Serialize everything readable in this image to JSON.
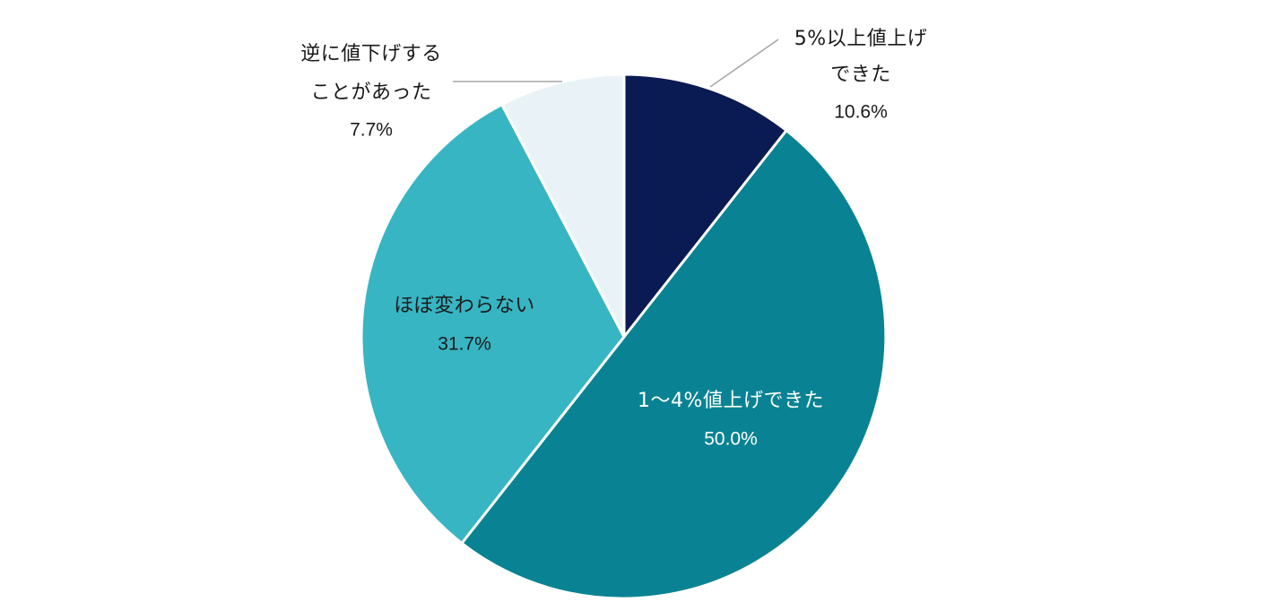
{
  "chart_data": {
    "type": "pie",
    "start_angle_deg": 0,
    "direction": "clockwise",
    "slices": [
      {
        "label_lines": [
          "5%以上値上げ",
          "できた"
        ],
        "value": 10.6,
        "value_text": "10.6%",
        "color": "#0a1a52",
        "text_color": "#1a1a1a",
        "label_placement": "outside"
      },
      {
        "label_lines": [
          "1〜4%値上げできた"
        ],
        "value": 50.0,
        "value_text": "50.0%",
        "color": "#098393",
        "text_color": "#ffffff",
        "label_placement": "inside"
      },
      {
        "label_lines": [
          "ほぼ変わらない"
        ],
        "value": 31.7,
        "value_text": "31.7%",
        "color": "#37b5c3",
        "text_color": "#1a1a1a",
        "label_placement": "inside"
      },
      {
        "label_lines": [
          "逆に値下げする",
          "ことがあった"
        ],
        "value": 7.7,
        "value_text": "7.7%",
        "color": "#e9f3f7",
        "text_color": "#1a1a1a",
        "label_placement": "outside"
      }
    ],
    "leader_line_color": "#a6a6a6",
    "separator_color": "#ffffff"
  }
}
